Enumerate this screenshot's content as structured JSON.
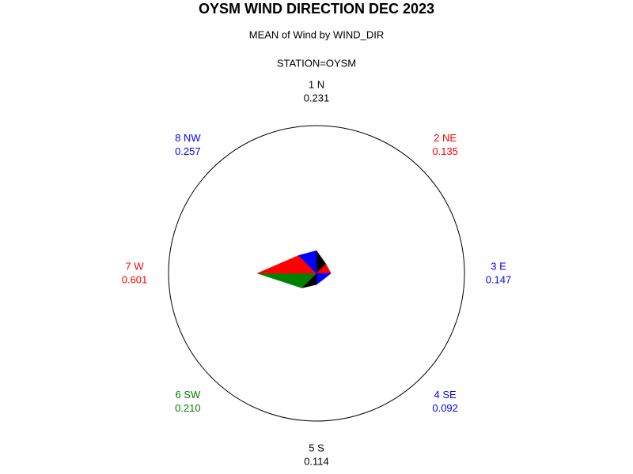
{
  "chart_data": {
    "type": "star",
    "title": "OYSM WIND DIRECTION DEC 2023",
    "subtitle": "MEAN of Wind by WIND_DIR",
    "by_line": "STATION=OYSM",
    "categories": [
      "1 N",
      "2 NE",
      "3 E",
      "4 SE",
      "5 S",
      "6 SW",
      "7 W",
      "8 NW"
    ],
    "values": [
      0.231,
      0.135,
      0.147,
      0.092,
      0.114,
      0.21,
      0.601,
      0.257
    ],
    "value_labels": [
      "0.231",
      "0.135",
      "0.147",
      "0.092",
      "0.114",
      "0.210",
      "0.601",
      "0.257"
    ],
    "colors": [
      "#000000",
      "#ff0000",
      "#0000ff",
      "#0000ff",
      "#000000",
      "#008000",
      "#ff0000",
      "#0000ff"
    ],
    "rlim": [
      0,
      1.5
    ]
  }
}
